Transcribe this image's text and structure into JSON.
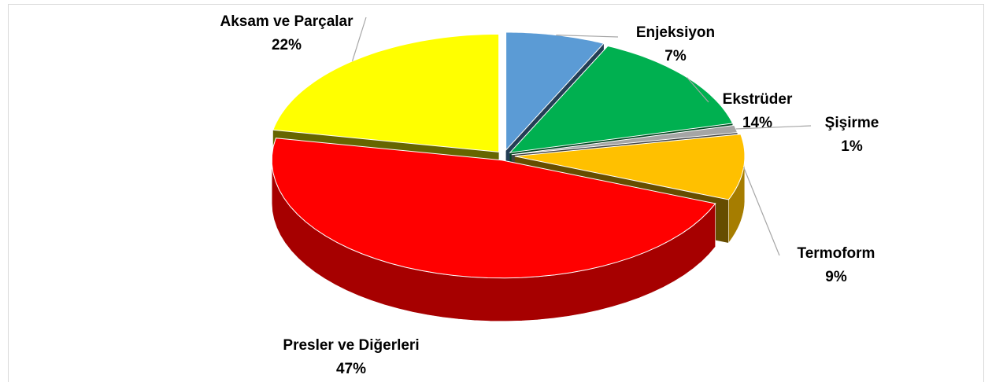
{
  "chart_data": {
    "type": "pie3d",
    "categories": [
      "Enjeksiyon",
      "Ekstrüder",
      "Şişirme",
      "Termoform",
      "Presler ve Diğerleri",
      "Aksam ve Parçalar"
    ],
    "values": [
      7,
      14,
      1,
      9,
      47,
      22
    ],
    "value_labels": [
      "7%",
      "14%",
      "1%",
      "9%",
      "47%",
      "22%"
    ],
    "colors": [
      "#5b9bd5",
      "#00b050",
      "#a5a5a5",
      "#ffc000",
      "#ff0000",
      "#ffff00"
    ]
  }
}
